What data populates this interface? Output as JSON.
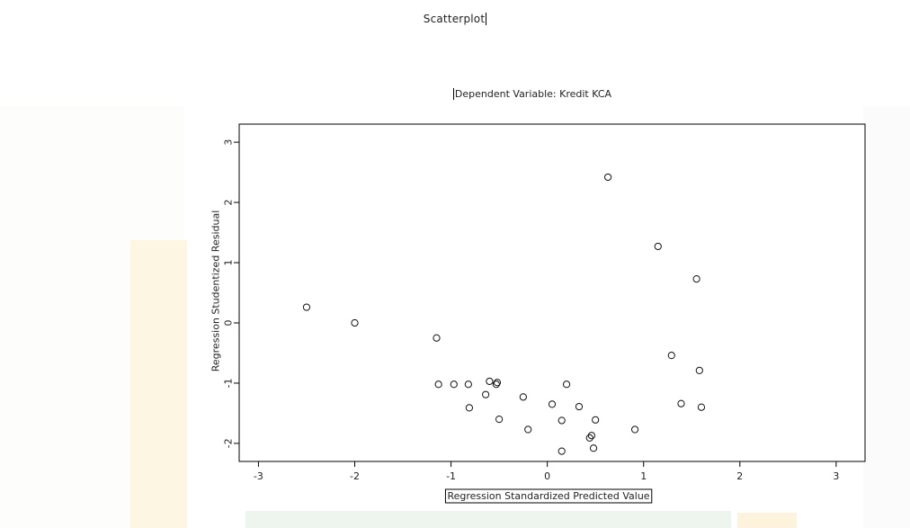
{
  "page": {
    "title": "Scatterplot"
  },
  "chart_data": {
    "type": "scatter",
    "title": "Dependent Variable: Kredit KCA",
    "xlabel": "Regression Standardized Predicted Value",
    "ylabel": "Regression Studentized Residual",
    "xlim": [
      -3.2,
      3.3
    ],
    "ylim": [
      -2.3,
      3.3
    ],
    "xticks": [
      -3,
      -2,
      -1,
      0,
      1,
      2,
      3
    ],
    "xtick_labels": [
      "-3",
      "-2",
      "-1",
      "0",
      "1",
      "2",
      "3"
    ],
    "yticks": [
      -2,
      -1,
      0,
      1,
      2,
      3
    ],
    "ytick_labels": [
      "-2",
      "-1",
      "0",
      "1",
      "2",
      "3"
    ],
    "grid": false,
    "legend": "none",
    "marker": "open-circle",
    "series": [
      {
        "x": [
          -2.5,
          -2.0,
          -1.15,
          -1.13,
          -0.97,
          -0.82,
          -0.81,
          -0.64,
          -0.6,
          -0.53,
          -0.52,
          -0.5,
          -0.25,
          -0.2,
          0.05,
          0.15,
          0.15,
          0.2,
          0.33,
          0.44,
          0.46,
          0.48,
          0.5,
          0.63,
          0.91,
          1.15,
          1.29,
          1.39,
          1.55,
          1.58,
          1.6
        ],
        "y": [
          0.26,
          0.0,
          -0.25,
          -1.02,
          -1.02,
          -1.02,
          -1.41,
          -1.19,
          -0.97,
          -1.02,
          -0.99,
          -1.6,
          -1.23,
          -1.77,
          -1.35,
          -1.62,
          -2.13,
          -1.02,
          -1.39,
          -1.91,
          -1.87,
          -2.08,
          -1.61,
          2.42,
          -1.77,
          1.27,
          -0.54,
          -1.34,
          0.73,
          -0.79,
          -1.4
        ]
      }
    ]
  }
}
